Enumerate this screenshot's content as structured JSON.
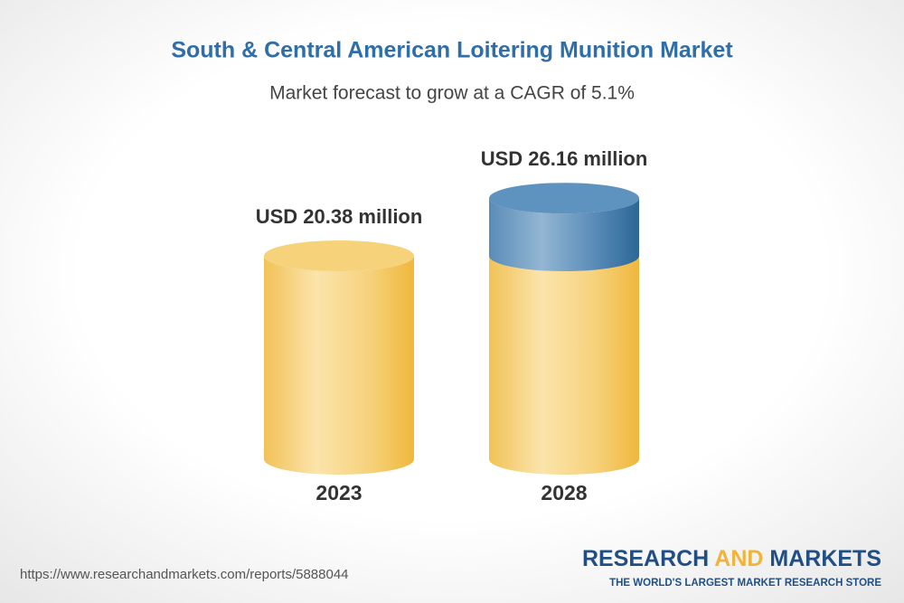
{
  "chart_data": {
    "type": "cylinder-bar",
    "title": "South & Central American Loitering Munition Market",
    "subtitle": "Market forecast to grow at a CAGR of 5.1%",
    "categories": [
      "2023",
      "2028"
    ],
    "values": [
      20.38,
      26.16
    ],
    "value_labels": [
      "USD 20.38 million",
      "USD 26.16 million"
    ]
  },
  "footer": {
    "url": "https://www.researchandmarkets.com/reports/5888044",
    "logo": {
      "words": [
        "RESEARCH",
        "AND",
        "MARKETS"
      ],
      "tagline": "THE WORLD'S LARGEST MARKET RESEARCH STORE"
    }
  }
}
